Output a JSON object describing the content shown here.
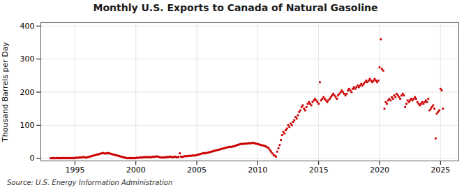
{
  "chart_data": {
    "type": "scatter",
    "title": "Monthly U.S. Exports to Canada of Natural Gasoline",
    "ylabel": "Thousand Barrels per Day",
    "source": "Source: U.S. Energy Information Administration",
    "color": "#cc0000",
    "marker": "square",
    "grid": true,
    "xlim": [
      1992.2,
      2026.5
    ],
    "xticks": [
      1995,
      2000,
      2005,
      2010,
      2015,
      2020,
      2025
    ],
    "ylim": [
      -8,
      410
    ],
    "yticks": [
      0,
      100,
      200,
      300,
      400
    ],
    "x": [
      1993.0,
      1993.1,
      1993.2,
      1993.3,
      1993.4,
      1993.5,
      1993.6,
      1993.7,
      1993.8,
      1993.9,
      1993.95,
      1994.0,
      1994.1,
      1994.2,
      1994.3,
      1994.4,
      1994.5,
      1994.6,
      1994.7,
      1994.8,
      1994.9,
      1995.0,
      1995.1,
      1995.2,
      1995.3,
      1995.4,
      1995.5,
      1995.6,
      1995.7,
      1995.8,
      1995.9,
      1996.0,
      1996.1,
      1996.2,
      1996.3,
      1996.4,
      1996.5,
      1996.6,
      1996.7,
      1996.8,
      1996.9,
      1997.0,
      1997.1,
      1997.2,
      1997.3,
      1997.4,
      1997.5,
      1997.6,
      1997.7,
      1997.8,
      1997.9,
      1998.0,
      1998.1,
      1998.2,
      1998.3,
      1998.4,
      1998.5,
      1998.6,
      1998.7,
      1998.8,
      1998.9,
      1999.0,
      1999.1,
      1999.2,
      1999.3,
      1999.4,
      1999.5,
      1999.6,
      1999.7,
      1999.8,
      1999.9,
      2000.0,
      2000.1,
      2000.2,
      2000.3,
      2000.4,
      2000.5,
      2000.6,
      2000.7,
      2000.8,
      2000.9,
      2001.0,
      2001.1,
      2001.2,
      2001.3,
      2001.4,
      2001.5,
      2001.6,
      2001.7,
      2001.8,
      2001.9,
      2002.0,
      2002.1,
      2002.2,
      2002.3,
      2002.4,
      2002.5,
      2002.6,
      2002.7,
      2002.8,
      2002.9,
      2003.0,
      2003.1,
      2003.2,
      2003.3,
      2003.4,
      2003.5,
      2003.6,
      2003.7,
      2003.8,
      2003.9,
      2004.0,
      2004.1,
      2004.2,
      2004.3,
      2004.4,
      2004.5,
      2004.6,
      2004.7,
      2004.8,
      2004.9,
      2005.0,
      2005.1,
      2005.2,
      2005.3,
      2005.4,
      2005.5,
      2005.6,
      2005.7,
      2005.8,
      2005.9,
      2006.0,
      2006.1,
      2006.2,
      2006.3,
      2006.4,
      2006.5,
      2006.6,
      2006.7,
      2006.8,
      2006.9,
      2007.0,
      2007.1,
      2007.2,
      2007.3,
      2007.4,
      2007.5,
      2007.6,
      2007.7,
      2007.8,
      2007.9,
      2008.0,
      2008.1,
      2008.2,
      2008.3,
      2008.4,
      2008.5,
      2008.6,
      2008.7,
      2008.8,
      2008.9,
      2009.0,
      2009.1,
      2009.2,
      2009.3,
      2009.4,
      2009.5,
      2009.6,
      2009.7,
      2009.8,
      2009.9,
      2010.0,
      2010.1,
      2010.2,
      2010.3,
      2010.4,
      2010.5,
      2010.6,
      2010.7,
      2010.8,
      2010.9,
      2011.0,
      2011.1,
      2011.2,
      2011.3,
      2011.4,
      2011.5,
      2011.6,
      2011.7,
      2011.8,
      2011.9,
      2012.0,
      2012.1,
      2012.2,
      2012.3,
      2012.4,
      2012.5,
      2012.6,
      2012.7,
      2012.8,
      2012.9,
      2013.0,
      2013.1,
      2013.2,
      2013.3,
      2013.4,
      2013.5,
      2013.6,
      2013.7,
      2013.8,
      2013.9,
      2014.0,
      2014.1,
      2014.2,
      2014.3,
      2014.4,
      2014.5,
      2014.6,
      2014.7,
      2014.8,
      2014.9,
      2015.0,
      2015.1,
      2015.2,
      2015.3,
      2015.4,
      2015.5,
      2015.6,
      2015.7,
      2015.8,
      2015.9,
      2016.0,
      2016.1,
      2016.2,
      2016.3,
      2016.4,
      2016.5,
      2016.6,
      2016.7,
      2016.8,
      2016.9,
      2017.0,
      2017.1,
      2017.2,
      2017.3,
      2017.4,
      2017.5,
      2017.6,
      2017.7,
      2017.8,
      2017.9,
      2018.0,
      2018.1,
      2018.2,
      2018.3,
      2018.4,
      2018.5,
      2018.6,
      2018.7,
      2018.8,
      2018.9,
      2019.0,
      2019.1,
      2019.2,
      2019.3,
      2019.4,
      2019.5,
      2019.6,
      2019.7,
      2019.8,
      2019.9,
      2020.0,
      2020.1,
      2020.2,
      2020.3,
      2020.4,
      2020.5,
      2020.6,
      2020.7,
      2020.8,
      2020.9,
      2021.0,
      2021.1,
      2021.2,
      2021.3,
      2021.4,
      2021.5,
      2021.6,
      2021.7,
      2021.8,
      2021.9,
      2022.0,
      2022.1,
      2022.2,
      2022.3,
      2022.4,
      2022.5,
      2022.6,
      2022.7,
      2022.8,
      2022.9,
      2023.0,
      2023.1,
      2023.2,
      2023.3,
      2023.4,
      2023.5,
      2023.6,
      2023.7,
      2023.8,
      2023.9,
      2024.0,
      2024.1,
      2024.2,
      2024.3,
      2024.4,
      2024.5,
      2024.6,
      2024.7,
      2024.8,
      2024.9,
      2025.0,
      2025.1,
      2025.2
    ],
    "values": [
      0,
      0,
      1,
      0,
      0,
      1,
      0,
      1,
      0,
      0,
      1,
      1,
      0,
      1,
      0,
      1,
      0,
      1,
      0,
      1,
      0,
      1,
      2,
      1,
      2,
      3,
      2,
      3,
      4,
      3,
      2,
      3,
      4,
      5,
      6,
      7,
      8,
      9,
      10,
      12,
      11,
      13,
      14,
      15,
      16,
      15,
      14,
      15,
      16,
      15,
      14,
      13,
      12,
      11,
      10,
      9,
      8,
      7,
      6,
      5,
      4,
      3,
      2,
      1,
      0,
      1,
      0,
      1,
      0,
      1,
      0,
      1,
      2,
      1,
      2,
      3,
      2,
      3,
      4,
      3,
      4,
      3,
      4,
      3,
      4,
      5,
      4,
      5,
      6,
      5,
      4,
      3,
      2,
      3,
      2,
      3,
      4,
      3,
      4,
      5,
      4,
      3,
      4,
      5,
      4,
      3,
      4,
      15,
      5,
      4,
      5,
      6,
      7,
      6,
      7,
      8,
      7,
      8,
      9,
      8,
      9,
      10,
      11,
      12,
      13,
      14,
      15,
      16,
      15,
      16,
      17,
      18,
      19,
      20,
      21,
      22,
      23,
      24,
      25,
      26,
      27,
      28,
      29,
      30,
      31,
      32,
      33,
      34,
      35,
      34,
      35,
      36,
      37,
      38,
      40,
      41,
      42,
      43,
      44,
      43,
      44,
      45,
      44,
      45,
      46,
      45,
      46,
      47,
      46,
      45,
      44,
      43,
      42,
      41,
      40,
      39,
      38,
      37,
      35,
      33,
      30,
      25,
      20,
      15,
      10,
      8,
      5,
      20,
      30,
      40,
      55,
      70,
      80,
      75,
      85,
      90,
      100,
      95,
      105,
      100,
      110,
      115,
      125,
      120,
      130,
      140,
      145,
      155,
      160,
      150,
      145,
      155,
      165,
      170,
      165,
      160,
      170,
      175,
      180,
      175,
      170,
      165,
      230,
      175,
      180,
      185,
      180,
      175,
      170,
      175,
      180,
      185,
      190,
      195,
      190,
      185,
      180,
      190,
      195,
      200,
      205,
      200,
      195,
      190,
      195,
      205,
      210,
      205,
      200,
      210,
      215,
      210,
      215,
      220,
      215,
      220,
      225,
      220,
      225,
      230,
      235,
      230,
      235,
      240,
      235,
      230,
      235,
      240,
      235,
      230,
      235,
      275,
      360,
      270,
      265,
      150,
      170,
      165,
      175,
      180,
      175,
      185,
      180,
      190,
      185,
      195,
      190,
      185,
      180,
      190,
      195,
      190,
      155,
      165,
      175,
      170,
      175,
      180,
      175,
      180,
      185,
      180,
      170,
      165,
      160,
      165,
      170,
      165,
      170,
      175,
      170,
      180,
      145,
      150,
      155,
      160,
      150,
      60,
      135,
      140,
      145,
      210,
      205,
      150
    ]
  }
}
